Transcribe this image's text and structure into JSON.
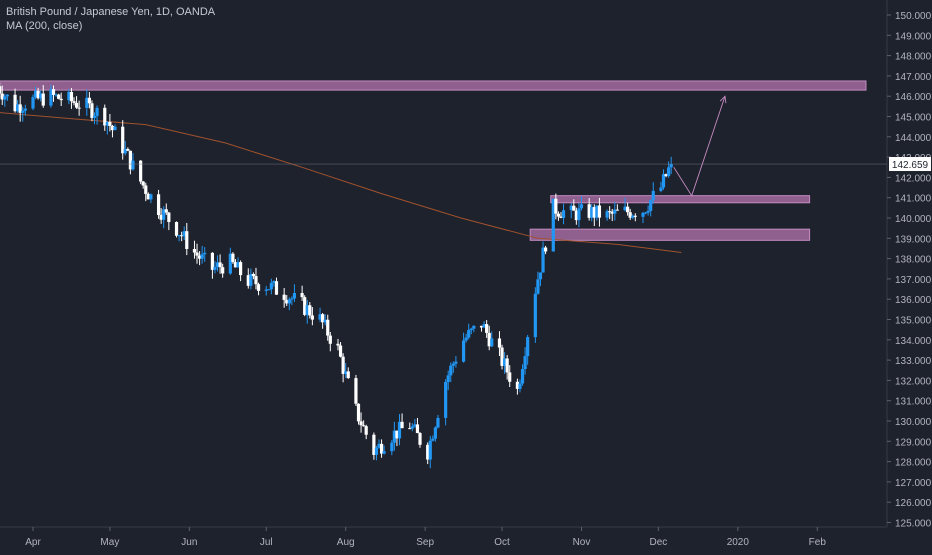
{
  "header": {
    "symbol_line": "British Pound / Japanese Yen, 1D, OANDA",
    "indicator_line": "MA (200, close)"
  },
  "colors": {
    "background": "#1e222d",
    "up_candle": "#2196f3",
    "down_candle": "#ffffff",
    "ma_line": "#a0522d",
    "zone_fill": "#a36aa0",
    "price_label_bg": "#ffffff",
    "price_label_text": "#1e222d",
    "axis_text": "#b2b5be"
  },
  "chart_data": {
    "type": "candlestick",
    "title": "British Pound / Japanese Yen, 1D, OANDA",
    "ylim": [
      124.5,
      151.0
    ],
    "y_ticks": [
      "125.000",
      "126.000",
      "127.000",
      "128.000",
      "129.000",
      "130.000",
      "131.000",
      "132.000",
      "133.000",
      "134.000",
      "135.000",
      "136.000",
      "137.000",
      "138.000",
      "139.000",
      "140.000",
      "141.000",
      "142.000",
      "143.000",
      "144.000",
      "145.000",
      "146.000",
      "147.000",
      "148.000",
      "149.000",
      "150.000"
    ],
    "x_ticks": [
      {
        "label": "Apr",
        "date": "2019-04-01"
      },
      {
        "label": "May",
        "date": "2019-05-01"
      },
      {
        "label": "Jun",
        "date": "2019-06-01"
      },
      {
        "label": "Jul",
        "date": "2019-07-01"
      },
      {
        "label": "Aug",
        "date": "2019-08-01"
      },
      {
        "label": "Sep",
        "date": "2019-09-01"
      },
      {
        "label": "Oct",
        "date": "2019-10-01"
      },
      {
        "label": "Nov",
        "date": "2019-11-01"
      },
      {
        "label": "Dec",
        "date": "2019-12-01"
      },
      {
        "label": "2020",
        "date": "2020-01-01"
      },
      {
        "label": "Feb",
        "date": "2020-02-01"
      }
    ],
    "last_price": "142.659",
    "closes": [
      {
        "date": "2019-03-18",
        "close": 146.5
      },
      {
        "date": "2019-03-25",
        "close": 145.5
      },
      {
        "date": "2019-04-01",
        "close": 145.8
      },
      {
        "date": "2019-04-08",
        "close": 146.0
      },
      {
        "date": "2019-04-15",
        "close": 145.8
      },
      {
        "date": "2019-04-22",
        "close": 145.5
      },
      {
        "date": "2019-04-29",
        "close": 145.0
      },
      {
        "date": "2019-05-06",
        "close": 143.5
      },
      {
        "date": "2019-05-13",
        "close": 141.8
      },
      {
        "date": "2019-05-20",
        "close": 140.5
      },
      {
        "date": "2019-05-27",
        "close": 139.5
      },
      {
        "date": "2019-06-03",
        "close": 138.3
      },
      {
        "date": "2019-06-10",
        "close": 137.5
      },
      {
        "date": "2019-06-17",
        "close": 137.8
      },
      {
        "date": "2019-06-24",
        "close": 136.9
      },
      {
        "date": "2019-07-01",
        "close": 136.7
      },
      {
        "date": "2019-07-08",
        "close": 136.3
      },
      {
        "date": "2019-07-15",
        "close": 135.7
      },
      {
        "date": "2019-07-22",
        "close": 135.0
      },
      {
        "date": "2019-07-29",
        "close": 133.5
      },
      {
        "date": "2019-08-05",
        "close": 130.5
      },
      {
        "date": "2019-08-12",
        "close": 128.5
      },
      {
        "date": "2019-08-19",
        "close": 129.3
      },
      {
        "date": "2019-08-26",
        "close": 129.8
      },
      {
        "date": "2019-09-02",
        "close": 128.5
      },
      {
        "date": "2019-09-09",
        "close": 132.0
      },
      {
        "date": "2019-09-16",
        "close": 134.0
      },
      {
        "date": "2019-09-23",
        "close": 134.8
      },
      {
        "date": "2019-09-30",
        "close": 133.2
      },
      {
        "date": "2019-10-07",
        "close": 131.5
      },
      {
        "date": "2019-10-14",
        "close": 136.5
      },
      {
        "date": "2019-10-21",
        "close": 140.5
      },
      {
        "date": "2019-10-28",
        "close": 140.2
      },
      {
        "date": "2019-11-04",
        "close": 140.3
      },
      {
        "date": "2019-11-11",
        "close": 140.1
      },
      {
        "date": "2019-11-18",
        "close": 140.3
      },
      {
        "date": "2019-11-25",
        "close": 140.4
      },
      {
        "date": "2019-12-02",
        "close": 141.5
      },
      {
        "date": "2019-12-06",
        "close": 142.66
      }
    ],
    "ma_200": [
      {
        "date": "2019-03-18",
        "value": 145.2
      },
      {
        "date": "2019-04-15",
        "value": 144.9
      },
      {
        "date": "2019-05-15",
        "value": 144.6
      },
      {
        "date": "2019-06-15",
        "value": 143.7
      },
      {
        "date": "2019-07-15",
        "value": 142.5
      },
      {
        "date": "2019-08-15",
        "value": 141.2
      },
      {
        "date": "2019-09-15",
        "value": 140.0
      },
      {
        "date": "2019-10-15",
        "value": 139.0
      },
      {
        "date": "2019-11-15",
        "value": 138.7
      },
      {
        "date": "2019-12-10",
        "value": 138.3
      }
    ],
    "zones": [
      {
        "from": "2019-03-18",
        "to": "2020-02-20",
        "low": 146.3,
        "high": 146.75
      },
      {
        "from": "2019-10-20",
        "to": "2020-01-29",
        "low": 140.75,
        "high": 141.1
      },
      {
        "from": "2019-10-12",
        "to": "2020-01-29",
        "low": 138.9,
        "high": 139.45
      }
    ],
    "projection": [
      {
        "date": "2019-12-07",
        "price": 142.5
      },
      {
        "date": "2019-12-14",
        "price": 141.1
      },
      {
        "date": "2019-12-27",
        "price": 146.0
      }
    ]
  }
}
